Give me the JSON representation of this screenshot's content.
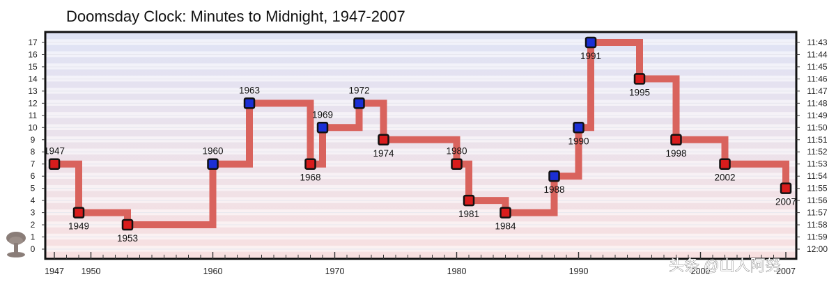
{
  "chart_data": {
    "type": "line",
    "title": "Doomsday Clock: Minutes to Midnight, 1947-2007",
    "x_range": [
      1947,
      2007
    ],
    "y_range": [
      0,
      17
    ],
    "x_ticks": [
      1947,
      1950,
      1960,
      1970,
      1980,
      1990,
      2000,
      2007
    ],
    "x_tick_labels": [
      "1947",
      "1950",
      "1960",
      "1970",
      "1980",
      "1990",
      "2000",
      "2007"
    ],
    "y_ticks_left": [
      "0",
      "1",
      "2",
      "3",
      "4",
      "5",
      "6",
      "7",
      "8",
      "9",
      "10",
      "11",
      "12",
      "13",
      "14",
      "15",
      "16",
      "17"
    ],
    "y_ticks_right": [
      "12:00",
      "11:59",
      "11:58",
      "11:57",
      "11:56",
      "11:55",
      "11:54",
      "11:53",
      "11:52",
      "11:51",
      "11:50",
      "11:49",
      "11:48",
      "11:47",
      "11:46",
      "11:45",
      "11:44",
      "11:43"
    ],
    "grid": true,
    "step": true,
    "line_color": "#d9635d",
    "band_top_color": "#dfe3f5",
    "band_bottom_color": "#f8e0e0",
    "points": [
      {
        "x": 1947,
        "y": 7,
        "label": "1947",
        "color": "red",
        "label_pos": "above"
      },
      {
        "x": 1949,
        "y": 3,
        "label": "1949",
        "color": "red",
        "label_pos": "below"
      },
      {
        "x": 1953,
        "y": 2,
        "label": "1953",
        "color": "red",
        "label_pos": "below"
      },
      {
        "x": 1960,
        "y": 7,
        "label": "1960",
        "color": "blue",
        "label_pos": "above"
      },
      {
        "x": 1963,
        "y": 12,
        "label": "1963",
        "color": "blue",
        "label_pos": "above"
      },
      {
        "x": 1968,
        "y": 7,
        "label": "1968",
        "color": "red",
        "label_pos": "below"
      },
      {
        "x": 1969,
        "y": 10,
        "label": "1969",
        "color": "blue",
        "label_pos": "above"
      },
      {
        "x": 1972,
        "y": 12,
        "label": "1972",
        "color": "blue",
        "label_pos": "above"
      },
      {
        "x": 1974,
        "y": 9,
        "label": "1974",
        "color": "red",
        "label_pos": "below"
      },
      {
        "x": 1980,
        "y": 7,
        "label": "1980",
        "color": "red",
        "label_pos": "above"
      },
      {
        "x": 1981,
        "y": 4,
        "label": "1981",
        "color": "red",
        "label_pos": "below"
      },
      {
        "x": 1984,
        "y": 3,
        "label": "1984",
        "color": "red",
        "label_pos": "below"
      },
      {
        "x": 1988,
        "y": 6,
        "label": "1988",
        "color": "blue",
        "label_pos": "below"
      },
      {
        "x": 1990,
        "y": 10,
        "label": "1990",
        "color": "blue",
        "label_pos": "below"
      },
      {
        "x": 1991,
        "y": 17,
        "label": "1991",
        "color": "blue",
        "label_pos": "below"
      },
      {
        "x": 1995,
        "y": 14,
        "label": "1995",
        "color": "red",
        "label_pos": "below"
      },
      {
        "x": 1998,
        "y": 9,
        "label": "1998",
        "color": "red",
        "label_pos": "below"
      },
      {
        "x": 2002,
        "y": 7,
        "label": "2002",
        "color": "red",
        "label_pos": "below"
      },
      {
        "x": 2007,
        "y": 5,
        "label": "2007",
        "color": "red",
        "label_pos": "below"
      }
    ]
  },
  "watermark": "头条 @山人阿努",
  "icons": {
    "bottom_left": "mushroom-cloud-icon"
  }
}
